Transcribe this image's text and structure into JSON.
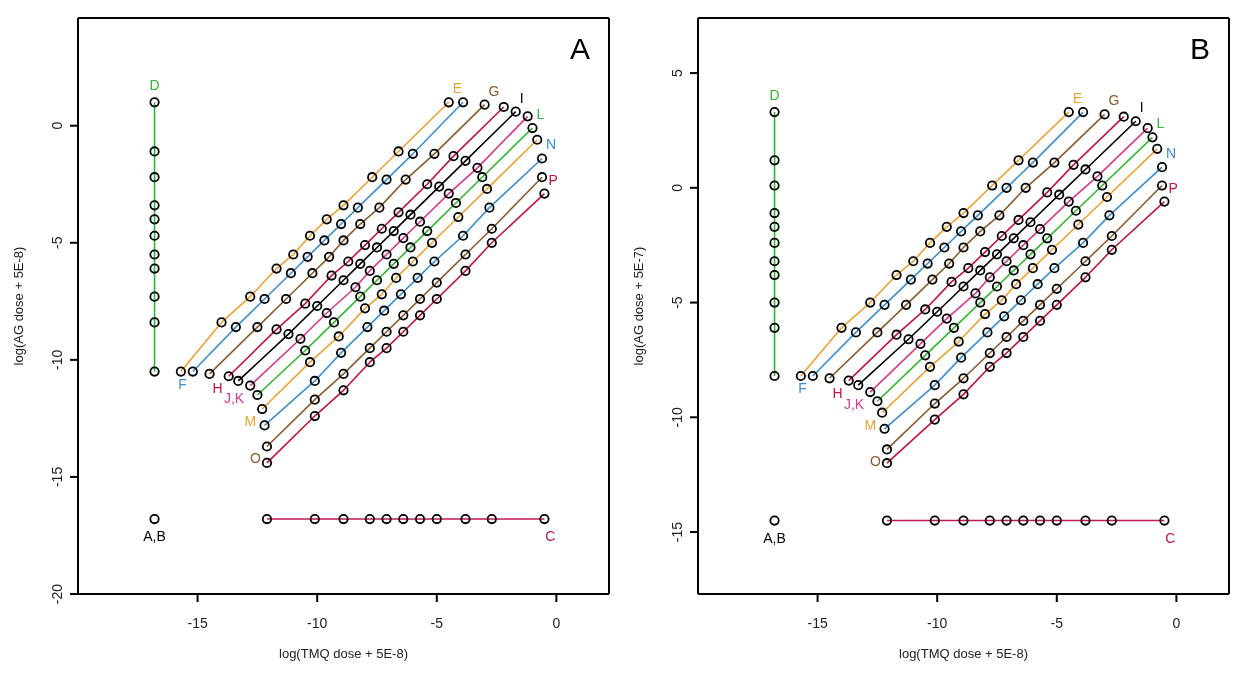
{
  "chart_data": [
    {
      "type": "line",
      "title": "A",
      "xlabel": "log(TMQ dose + 5E-8)",
      "ylabel": "log(AG dose + 5E-8)",
      "xlim": [
        -20,
        2.2
      ],
      "ylim": [
        -20,
        4.6
      ],
      "xticks": [
        -15,
        -10,
        -5,
        0
      ],
      "yticks": [
        -20,
        -15,
        -10,
        -5,
        0
      ],
      "marker": "circle",
      "series": [
        {
          "name": "A,B",
          "type": "scatter",
          "color": "#000000",
          "x": [
            -16.8
          ],
          "values": [
            -16.8
          ]
        },
        {
          "name": "C",
          "type": "line",
          "color": "#c0185a",
          "x": [
            -12.1,
            -10.1,
            -8.9,
            -7.8,
            -7.1,
            -6.4,
            -5.7,
            -5.0,
            -3.8,
            -2.7,
            -0.5
          ],
          "values": [
            -16.8,
            -16.8,
            -16.8,
            -16.8,
            -16.8,
            -16.8,
            -16.8,
            -16.8,
            -16.8,
            -16.8,
            -16.8
          ]
        },
        {
          "name": "D",
          "type": "line",
          "color": "#2db82d",
          "x": [
            -16.8,
            -16.8,
            -16.8,
            -16.8,
            -16.8,
            -16.8,
            -16.8,
            -16.8,
            -16.8,
            -16.8,
            -16.8
          ],
          "values": [
            -10.5,
            -8.4,
            -7.3,
            -6.1,
            -5.5,
            -4.7,
            -4.0,
            -3.4,
            -2.2,
            -1.1,
            1.0
          ]
        },
        {
          "name": "E",
          "type": "line",
          "color": "#f0a030",
          "x": [
            -15.7,
            -14.0,
            -12.8,
            -11.7,
            -11.0,
            -10.3,
            -9.6,
            -8.9,
            -7.7,
            -6.6,
            -4.5
          ],
          "values": [
            -10.5,
            -8.4,
            -7.3,
            -6.1,
            -5.5,
            -4.7,
            -4.0,
            -3.4,
            -2.2,
            -1.1,
            1.0
          ]
        },
        {
          "name": "F",
          "type": "line",
          "color": "#3a8fd0",
          "x": [
            -15.2,
            -13.4,
            -12.2,
            -11.1,
            -10.4,
            -9.7,
            -9.0,
            -8.3,
            -7.1,
            -6.0,
            -3.9
          ],
          "values": [
            -10.5,
            -8.6,
            -7.4,
            -6.3,
            -5.6,
            -4.9,
            -4.2,
            -3.5,
            -2.3,
            -1.2,
            1.0
          ]
        },
        {
          "name": "G",
          "type": "line",
          "color": "#8b5a2b",
          "x": [
            -14.5,
            -12.5,
            -11.3,
            -10.2,
            -9.5,
            -8.9,
            -8.2,
            -7.4,
            -6.3,
            -5.1,
            -3.0
          ],
          "values": [
            -10.6,
            -8.6,
            -7.4,
            -6.3,
            -5.6,
            -4.9,
            -4.2,
            -3.5,
            -2.3,
            -1.2,
            0.9
          ]
        },
        {
          "name": "H",
          "type": "line",
          "color": "#c0143c",
          "x": [
            -13.7,
            -11.7,
            -10.5,
            -9.4,
            -8.7,
            -8.0,
            -7.3,
            -6.6,
            -5.4,
            -4.3,
            -2.2
          ],
          "values": [
            -10.7,
            -8.7,
            -7.6,
            -6.4,
            -5.8,
            -5.1,
            -4.4,
            -3.7,
            -2.5,
            -1.3,
            0.8
          ]
        },
        {
          "name": "I",
          "type": "line",
          "color": "#000000",
          "x": [
            -13.3,
            -11.2,
            -10.0,
            -8.9,
            -8.2,
            -7.5,
            -6.8,
            -6.1,
            -4.9,
            -3.8,
            -1.7
          ],
          "values": [
            -10.9,
            -8.9,
            -7.7,
            -6.6,
            -5.9,
            -5.2,
            -4.5,
            -3.8,
            -2.6,
            -1.5,
            0.6
          ]
        },
        {
          "name": "J,K",
          "type": "line",
          "color": "#d63a8c",
          "x": [
            -12.8,
            -10.7,
            -9.6,
            -8.4,
            -7.8,
            -7.1,
            -6.4,
            -5.7,
            -4.5,
            -3.3,
            -1.2
          ],
          "values": [
            -11.1,
            -9.1,
            -8.0,
            -6.9,
            -6.2,
            -5.5,
            -4.8,
            -4.1,
            -2.9,
            -1.8,
            0.4
          ]
        },
        {
          "name": "L",
          "type": "line",
          "color": "#2db82d",
          "x": [
            -12.5,
            -10.5,
            -9.3,
            -8.2,
            -7.5,
            -6.8,
            -6.1,
            -5.4,
            -4.2,
            -3.1,
            -1.0
          ],
          "values": [
            -11.5,
            -9.6,
            -8.4,
            -7.3,
            -6.6,
            -5.9,
            -5.2,
            -4.5,
            -3.3,
            -2.2,
            -0.1
          ]
        },
        {
          "name": "M",
          "type": "line",
          "color": "#f0a030",
          "x": [
            -12.3,
            -10.3,
            -9.1,
            -8.0,
            -7.3,
            -6.7,
            -6.0,
            -5.2,
            -4.1,
            -2.9,
            -0.8
          ],
          "values": [
            -12.1,
            -10.1,
            -9.0,
            -7.8,
            -7.2,
            -6.5,
            -5.8,
            -5.0,
            -3.9,
            -2.7,
            -0.6
          ]
        },
        {
          "name": "N",
          "type": "line",
          "color": "#3a8fd0",
          "x": [
            -12.2,
            -10.1,
            -9.0,
            -7.9,
            -7.2,
            -6.5,
            -5.8,
            -5.1,
            -3.9,
            -2.8,
            -0.6
          ],
          "values": [
            -12.8,
            -10.9,
            -9.7,
            -8.6,
            -7.9,
            -7.2,
            -6.5,
            -5.8,
            -4.7,
            -3.5,
            -1.4
          ]
        },
        {
          "name": "O",
          "type": "line",
          "color": "#8b5a2b",
          "x": [
            -12.1,
            -10.1,
            -8.9,
            -7.8,
            -7.1,
            -6.4,
            -5.7,
            -5.0,
            -3.8,
            -2.7,
            -0.6
          ],
          "values": [
            -13.7,
            -11.7,
            -10.6,
            -9.5,
            -8.8,
            -8.1,
            -7.4,
            -6.7,
            -5.5,
            -4.4,
            -2.2
          ]
        },
        {
          "name": "P",
          "type": "line",
          "color": "#c0143c",
          "x": [
            -12.1,
            -10.1,
            -8.9,
            -7.8,
            -7.1,
            -6.4,
            -5.7,
            -5.0,
            -3.8,
            -2.7,
            -0.5
          ],
          "values": [
            -14.4,
            -12.4,
            -11.3,
            -10.1,
            -9.5,
            -8.8,
            -8.1,
            -7.4,
            -6.2,
            -5.0,
            -2.9
          ]
        }
      ]
    },
    {
      "type": "line",
      "title": "B",
      "xlabel": "log(TMQ dose + 5E-8)",
      "ylabel": "log(AG dose + 5E-7)",
      "xlim": [
        -20,
        2.2
      ],
      "ylim": [
        -17.7,
        7.4
      ],
      "xticks": [
        -15,
        -10,
        -5,
        0
      ],
      "yticks": [
        -15,
        -10,
        -5,
        0,
        5
      ],
      "marker": "circle",
      "series": [
        {
          "name": "A,B",
          "type": "scatter",
          "color": "#000000",
          "x": [
            -16.8
          ],
          "values": [
            -14.5
          ]
        },
        {
          "name": "C",
          "type": "line",
          "color": "#c0185a",
          "x": [
            -12.1,
            -10.1,
            -8.9,
            -7.8,
            -7.1,
            -6.4,
            -5.7,
            -5.0,
            -3.8,
            -2.7,
            -0.5
          ],
          "values": [
            -14.5,
            -14.5,
            -14.5,
            -14.5,
            -14.5,
            -14.5,
            -14.5,
            -14.5,
            -14.5,
            -14.5,
            -14.5
          ]
        },
        {
          "name": "D",
          "type": "line",
          "color": "#2db82d",
          "x": [
            -16.8,
            -16.8,
            -16.8,
            -16.8,
            -16.8,
            -16.8,
            -16.8,
            -16.8,
            -16.8,
            -16.8,
            -16.8
          ],
          "values": [
            -8.2,
            -6.1,
            -5.0,
            -3.8,
            -3.2,
            -2.4,
            -1.7,
            -1.1,
            0.1,
            1.2,
            3.3
          ]
        },
        {
          "name": "E",
          "type": "line",
          "color": "#f0a030",
          "x": [
            -15.7,
            -14.0,
            -12.8,
            -11.7,
            -11.0,
            -10.3,
            -9.6,
            -8.9,
            -7.7,
            -6.6,
            -4.5
          ],
          "values": [
            -8.2,
            -6.1,
            -5.0,
            -3.8,
            -3.2,
            -2.4,
            -1.7,
            -1.1,
            0.1,
            1.2,
            3.3
          ]
        },
        {
          "name": "F",
          "type": "line",
          "color": "#3a8fd0",
          "x": [
            -15.2,
            -13.4,
            -12.2,
            -11.1,
            -10.4,
            -9.7,
            -9.0,
            -8.3,
            -7.1,
            -6.0,
            -3.9
          ],
          "values": [
            -8.2,
            -6.3,
            -5.1,
            -4.0,
            -3.3,
            -2.6,
            -1.9,
            -1.2,
            0.0,
            1.1,
            3.3
          ]
        },
        {
          "name": "G",
          "type": "line",
          "color": "#8b5a2b",
          "x": [
            -14.5,
            -12.5,
            -11.3,
            -10.2,
            -9.5,
            -8.9,
            -8.2,
            -7.4,
            -6.3,
            -5.1,
            -3.0
          ],
          "values": [
            -8.3,
            -6.3,
            -5.1,
            -4.0,
            -3.3,
            -2.6,
            -1.9,
            -1.2,
            0.0,
            1.1,
            3.2
          ]
        },
        {
          "name": "H",
          "type": "line",
          "color": "#c0143c",
          "x": [
            -13.7,
            -11.7,
            -10.5,
            -9.4,
            -8.7,
            -8.0,
            -7.3,
            -6.6,
            -5.4,
            -4.3,
            -2.2
          ],
          "values": [
            -8.4,
            -6.4,
            -5.3,
            -4.1,
            -3.5,
            -2.8,
            -2.1,
            -1.4,
            -0.2,
            1.0,
            3.1
          ]
        },
        {
          "name": "I",
          "type": "line",
          "color": "#000000",
          "x": [
            -13.3,
            -11.2,
            -10.0,
            -8.9,
            -8.2,
            -7.5,
            -6.8,
            -6.1,
            -4.9,
            -3.8,
            -1.7
          ],
          "values": [
            -8.6,
            -6.6,
            -5.4,
            -4.3,
            -3.6,
            -2.9,
            -2.2,
            -1.5,
            -0.3,
            0.8,
            2.9
          ]
        },
        {
          "name": "J,K",
          "type": "line",
          "color": "#d63a8c",
          "x": [
            -12.8,
            -10.7,
            -9.6,
            -8.4,
            -7.8,
            -7.1,
            -6.4,
            -5.7,
            -4.5,
            -3.3,
            -1.2
          ],
          "values": [
            -8.9,
            -6.8,
            -5.7,
            -4.6,
            -3.9,
            -3.2,
            -2.5,
            -1.8,
            -0.6,
            0.5,
            2.6
          ]
        },
        {
          "name": "L",
          "type": "line",
          "color": "#2db82d",
          "x": [
            -12.5,
            -10.5,
            -9.3,
            -8.2,
            -7.5,
            -6.8,
            -6.1,
            -5.4,
            -4.2,
            -3.1,
            -1.0
          ],
          "values": [
            -9.3,
            -7.3,
            -6.1,
            -5.0,
            -4.3,
            -3.6,
            -2.9,
            -2.2,
            -1.0,
            0.1,
            2.2
          ]
        },
        {
          "name": "M",
          "type": "line",
          "color": "#f0a030",
          "x": [
            -12.3,
            -10.3,
            -9.1,
            -8.0,
            -7.3,
            -6.7,
            -6.0,
            -5.2,
            -4.1,
            -2.9,
            -0.8
          ],
          "values": [
            -9.8,
            -7.8,
            -6.7,
            -5.5,
            -4.9,
            -4.2,
            -3.5,
            -2.7,
            -1.6,
            -0.4,
            1.7
          ]
        },
        {
          "name": "N",
          "type": "line",
          "color": "#3a8fd0",
          "x": [
            -12.2,
            -10.1,
            -9.0,
            -7.9,
            -7.2,
            -6.5,
            -5.8,
            -5.1,
            -3.9,
            -2.8,
            -0.6
          ],
          "values": [
            -10.5,
            -8.6,
            -7.4,
            -6.3,
            -5.6,
            -4.9,
            -4.2,
            -3.5,
            -2.4,
            -1.2,
            0.9
          ]
        },
        {
          "name": "O",
          "type": "line",
          "color": "#8b5a2b",
          "x": [
            -12.1,
            -10.1,
            -8.9,
            -7.8,
            -7.1,
            -6.4,
            -5.7,
            -5.0,
            -3.8,
            -2.7,
            -0.6
          ],
          "values": [
            -11.4,
            -9.4,
            -8.3,
            -7.2,
            -6.5,
            -5.8,
            -5.1,
            -4.4,
            -3.2,
            -2.1,
            0.1
          ]
        },
        {
          "name": "P",
          "type": "line",
          "color": "#c0143c",
          "x": [
            -12.1,
            -10.1,
            -8.9,
            -7.8,
            -7.1,
            -6.4,
            -5.7,
            -5.0,
            -3.8,
            -2.7,
            -0.5
          ],
          "values": [
            -12.0,
            -10.1,
            -9.0,
            -7.8,
            -7.2,
            -6.5,
            -5.8,
            -5.1,
            -3.9,
            -2.7,
            -0.6
          ]
        }
      ]
    }
  ]
}
